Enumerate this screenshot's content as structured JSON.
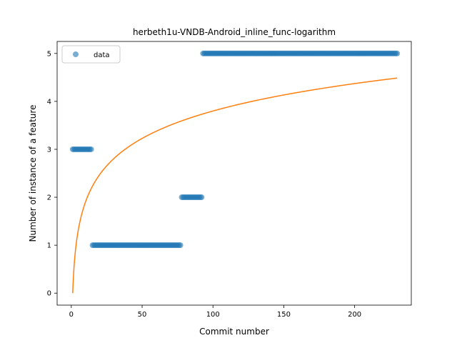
{
  "chart_data": {
    "type": "scatter",
    "title": "herbeth1u-VNDB-Android_inline_func-logarithm",
    "xlabel": "Commit number",
    "ylabel": "Number of instance of a feature",
    "xlim": [
      -10,
      240
    ],
    "ylim": [
      -0.25,
      5.25
    ],
    "xticks": [
      0,
      50,
      100,
      150,
      200
    ],
    "yticks": [
      0,
      1,
      2,
      3,
      4,
      5
    ],
    "grid": false,
    "legend_position": "top-left",
    "scatter_segments": [
      {
        "x_start": 1,
        "x_end": 14,
        "y": 3
      },
      {
        "x_start": 15,
        "x_end": 77,
        "y": 1
      },
      {
        "x_start": 78,
        "x_end": 92,
        "y": 2
      },
      {
        "x_start": 93,
        "x_end": 230,
        "y": 5
      }
    ],
    "series": [
      {
        "name": "data",
        "kind": "scatter",
        "color": "#1f77b4"
      },
      {
        "kind": "line",
        "model": "a*ln(x)",
        "a": 0.825,
        "x_range": [
          1,
          230
        ],
        "color": "#ff7f0e"
      }
    ]
  }
}
